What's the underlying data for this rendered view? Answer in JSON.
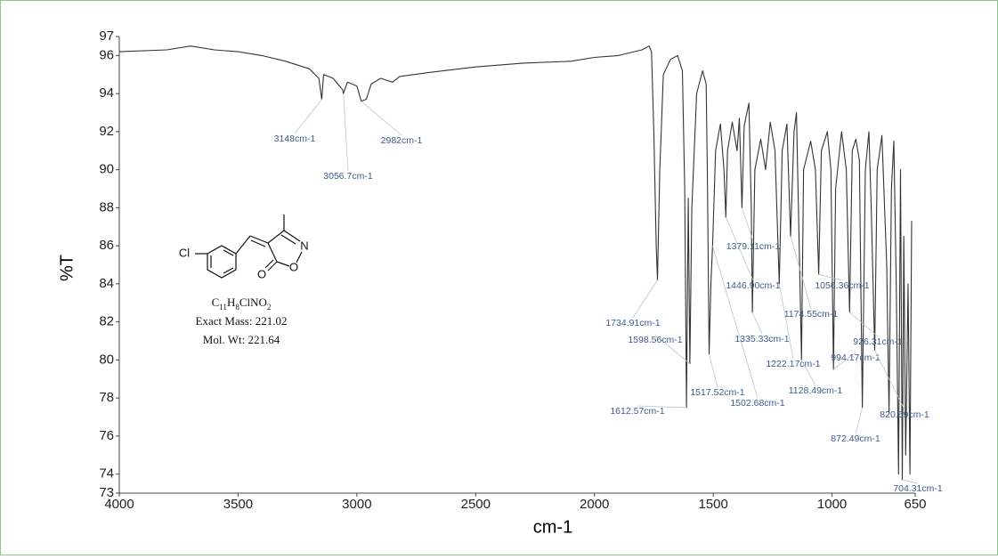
{
  "chart_data": {
    "type": "line",
    "x_label": "cm-1",
    "y_label": "%T",
    "color": "#333333",
    "xlim": [
      4000,
      650
    ],
    "xticks": [
      4000,
      3500,
      3000,
      2500,
      2000,
      1500,
      1000,
      650
    ],
    "ylim": [
      73,
      97
    ],
    "yticks": [
      73,
      74,
      76,
      78,
      80,
      82,
      84,
      86,
      88,
      90,
      92,
      94,
      96,
      97
    ],
    "x": [
      4000,
      3800,
      3700,
      3600,
      3500,
      3400,
      3300,
      3200,
      3160,
      3148,
      3140,
      3100,
      3060,
      3056.7,
      3040,
      3000,
      2982,
      2960,
      2940,
      2900,
      2850,
      2820,
      2700,
      2500,
      2300,
      2100,
      2000,
      1900,
      1800,
      1770,
      1760,
      1750,
      1740,
      1734.91,
      1725,
      1710,
      1680,
      1650,
      1630,
      1620,
      1612.57,
      1605,
      1598.56,
      1590,
      1570,
      1545,
      1530,
      1525,
      1517.52,
      1510,
      1502.68,
      1490,
      1470,
      1455,
      1446.9,
      1440,
      1420,
      1400,
      1390,
      1379.11,
      1370,
      1350,
      1340,
      1335.33,
      1325,
      1300,
      1280,
      1260,
      1240,
      1222.17,
      1210,
      1190,
      1174.55,
      1160,
      1150,
      1135,
      1128.49,
      1120,
      1090,
      1070,
      1056.36,
      1045,
      1020,
      1005,
      994.17,
      985,
      960,
      940,
      926.31,
      915,
      900,
      885,
      872.49,
      860,
      845,
      835,
      820.59,
      810,
      790,
      770,
      760,
      750,
      740,
      730,
      720,
      712,
      704.31,
      698,
      690,
      680,
      672,
      665
    ],
    "values": [
      96.2,
      96.3,
      96.5,
      96.3,
      96.2,
      96.0,
      95.7,
      95.3,
      94.8,
      93.7,
      95.0,
      94.8,
      94.2,
      94.0,
      94.6,
      94.4,
      93.6,
      93.7,
      94.5,
      94.8,
      94.6,
      94.9,
      95.1,
      95.4,
      95.6,
      95.7,
      95.9,
      96.0,
      96.3,
      96.5,
      96.2,
      92,
      86,
      84.2,
      90,
      95,
      95.8,
      96.0,
      95.2,
      89,
      77.5,
      88.5,
      79.8,
      88,
      94,
      95.2,
      94.5,
      90,
      80.3,
      84,
      86,
      91,
      92.4,
      90,
      87.5,
      91,
      92.5,
      91,
      92.7,
      88.0,
      92.3,
      93.5,
      88,
      82.5,
      90,
      91.6,
      90,
      92.5,
      91,
      84,
      91,
      92.4,
      86.5,
      92,
      93,
      84,
      80,
      90,
      91.5,
      90,
      84.5,
      91,
      92,
      90,
      79.5,
      89,
      92,
      90,
      82.5,
      91,
      91.6,
      90.5,
      77.5,
      90,
      92,
      88,
      80.5,
      90,
      91.8,
      85,
      77.2,
      89,
      91.5,
      84,
      74,
      90,
      73.7,
      86.5,
      75,
      84,
      74,
      87.3
    ],
    "annotations": [
      {
        "text": "3148cm-1",
        "x": 3148,
        "y": 93.7
      },
      {
        "text": "3056.7cm-1",
        "x": 3056.7,
        "y": 94.0
      },
      {
        "text": "2982cm-1",
        "x": 2982,
        "y": 93.6
      },
      {
        "text": "1734.91cm-1",
        "x": 1734.91,
        "y": 84.2
      },
      {
        "text": "1598.56cm-1",
        "x": 1598.56,
        "y": 79.8
      },
      {
        "text": "1612.57cm-1",
        "x": 1612.57,
        "y": 77.5
      },
      {
        "text": "1517.52cm-1",
        "x": 1517.52,
        "y": 80.3
      },
      {
        "text": "1502.68cm-1",
        "x": 1502.68,
        "y": 86
      },
      {
        "text": "1446.90cm-1",
        "x": 1446.9,
        "y": 87.5
      },
      {
        "text": "1379.11cm-1",
        "x": 1379.11,
        "y": 88.0
      },
      {
        "text": "1335.33cm-1",
        "x": 1335.33,
        "y": 82.5
      },
      {
        "text": "1222.17cm-1",
        "x": 1222.17,
        "y": 84
      },
      {
        "text": "1174.55cm-1",
        "x": 1174.55,
        "y": 86.5
      },
      {
        "text": "1128.49cm-1",
        "x": 1128.49,
        "y": 80
      },
      {
        "text": "1056.36cm-1",
        "x": 1056.36,
        "y": 84.5
      },
      {
        "text": "994.17cm-1",
        "x": 994.17,
        "y": 79.5
      },
      {
        "text": "926.31cm-1",
        "x": 926.31,
        "y": 82.5
      },
      {
        "text": "872.49cm-1",
        "x": 872.49,
        "y": 77.5
      },
      {
        "text": "820.59cm-1",
        "x": 820.59,
        "y": 80.5
      },
      {
        "text": "704.31cm-1",
        "x": 704.31,
        "y": 73.7
      }
    ],
    "molecule": {
      "atoms": [
        "Cl",
        "N",
        "O",
        "O"
      ],
      "formula": "C11H8ClNO2",
      "exact_mass": "Exact Mass: 221.02",
      "mol_wt": "Mol. Wt: 221.64"
    }
  }
}
